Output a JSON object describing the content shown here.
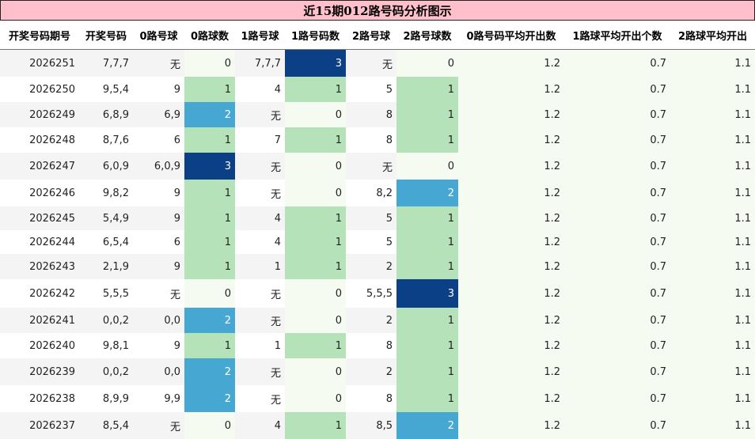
{
  "title": "近15期012路号码分析图示",
  "headers": [
    "开奖号码期号",
    "开奖号码",
    "0路号球",
    "0路球数",
    "1路号球",
    "1路号码数",
    "2路号球",
    "2路号球数",
    "0路号码平均开出数",
    "1路球平均开出个数",
    "2路球平均开出"
  ],
  "rows": [
    {
      "period": "2026251",
      "numbers": "7,7,7",
      "r0": "无",
      "c0": "0",
      "r1": "7,7,7",
      "c1": "3",
      "r2": "无",
      "c2": "0",
      "a0": "1.2",
      "a1": "0.7",
      "a2": "1.1"
    },
    {
      "period": "2026250",
      "numbers": "9,5,4",
      "r0": "9",
      "c0": "1",
      "r1": "4",
      "c1": "1",
      "r2": "5",
      "c2": "1",
      "a0": "1.2",
      "a1": "0.7",
      "a2": "1.1"
    },
    {
      "period": "2026249",
      "numbers": "6,8,9",
      "r0": "6,9",
      "c0": "2",
      "r1": "无",
      "c1": "0",
      "r2": "8",
      "c2": "1",
      "a0": "1.2",
      "a1": "0.7",
      "a2": "1.1"
    },
    {
      "period": "2026248",
      "numbers": "8,7,6",
      "r0": "6",
      "c0": "1",
      "r1": "7",
      "c1": "1",
      "r2": "8",
      "c2": "1",
      "a0": "1.2",
      "a1": "0.7",
      "a2": "1.1"
    },
    {
      "period": "2026247",
      "numbers": "6,0,9",
      "r0": "6,0,9",
      "c0": "3",
      "r1": "无",
      "c1": "0",
      "r2": "无",
      "c2": "0",
      "a0": "1.2",
      "a1": "0.7",
      "a2": "1.1"
    },
    {
      "period": "2026246",
      "numbers": "9,8,2",
      "r0": "9",
      "c0": "1",
      "r1": "无",
      "c1": "0",
      "r2": "8,2",
      "c2": "2",
      "a0": "1.2",
      "a1": "0.7",
      "a2": "1.1"
    },
    {
      "period": "2026245",
      "numbers": "5,4,9",
      "r0": "9",
      "c0": "1",
      "r1": "4",
      "c1": "1",
      "r2": "5",
      "c2": "1",
      "a0": "1.2",
      "a1": "0.7",
      "a2": "1.1"
    },
    {
      "period": "2026244",
      "numbers": "6,5,4",
      "r0": "6",
      "c0": "1",
      "r1": "4",
      "c1": "1",
      "r2": "5",
      "c2": "1",
      "a0": "1.2",
      "a1": "0.7",
      "a2": "1.1"
    },
    {
      "period": "2026243",
      "numbers": "2,1,9",
      "r0": "9",
      "c0": "1",
      "r1": "1",
      "c1": "1",
      "r2": "2",
      "c2": "1",
      "a0": "1.2",
      "a1": "0.7",
      "a2": "1.1"
    },
    {
      "period": "2026242",
      "numbers": "5,5,5",
      "r0": "无",
      "c0": "0",
      "r1": "无",
      "c1": "0",
      "r2": "5,5,5",
      "c2": "3",
      "a0": "1.2",
      "a1": "0.7",
      "a2": "1.1"
    },
    {
      "period": "2026241",
      "numbers": "0,0,2",
      "r0": "0,0",
      "c0": "2",
      "r1": "无",
      "c1": "0",
      "r2": "2",
      "c2": "1",
      "a0": "1.2",
      "a1": "0.7",
      "a2": "1.1"
    },
    {
      "period": "2026240",
      "numbers": "9,8,1",
      "r0": "9",
      "c0": "1",
      "r1": "1",
      "c1": "1",
      "r2": "8",
      "c2": "1",
      "a0": "1.2",
      "a1": "0.7",
      "a2": "1.1"
    },
    {
      "period": "2026239",
      "numbers": "0,0,2",
      "r0": "0,0",
      "c0": "2",
      "r1": "无",
      "c1": "0",
      "r2": "2",
      "c2": "1",
      "a0": "1.2",
      "a1": "0.7",
      "a2": "1.1"
    },
    {
      "period": "2026238",
      "numbers": "8,9,9",
      "r0": "9,9",
      "c0": "2",
      "r1": "无",
      "c1": "0",
      "r2": "8",
      "c2": "1",
      "a0": "1.2",
      "a1": "0.7",
      "a2": "1.1"
    },
    {
      "period": "2026237",
      "numbers": "8,5,4",
      "r0": "无",
      "c0": "0",
      "r1": "4",
      "c1": "1",
      "r2": "8,5",
      "c2": "2",
      "a0": "1.2",
      "a1": "0.7",
      "a2": "1.1"
    }
  ],
  "colors": {
    "title_bg": "#ffc0cb",
    "count_0": "#f5fbf1",
    "count_1": "#b5e2b8",
    "count_2": "#45a7d2",
    "count_3": "#0b3f86"
  }
}
